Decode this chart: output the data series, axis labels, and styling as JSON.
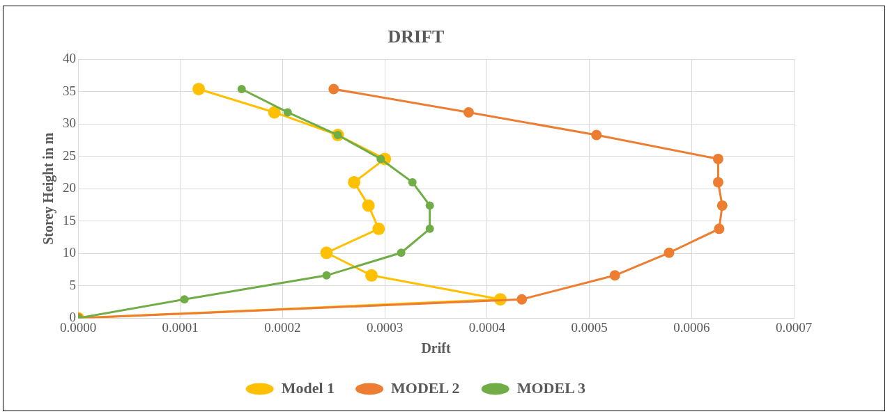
{
  "chart_data": {
    "type": "line",
    "title": "DRIFT",
    "xlabel": "Drift",
    "ylabel": "Storey Height in m",
    "xlim": [
      0,
      0.0007
    ],
    "xticks": [
      {
        "value": 0,
        "label": "0.0000"
      },
      {
        "value": 0.0001,
        "label": "0.0001"
      },
      {
        "value": 0.0002,
        "label": "0.0002"
      },
      {
        "value": 0.0003,
        "label": "0.0003"
      },
      {
        "value": 0.0004,
        "label": "0.0004"
      },
      {
        "value": 0.0005,
        "label": "0.0005"
      },
      {
        "value": 0.0006,
        "label": "0.0006"
      },
      {
        "value": 0.0007,
        "label": "0.0007"
      }
    ],
    "ylim": [
      0,
      40
    ],
    "yticks": [
      0,
      5,
      10,
      15,
      20,
      25,
      30,
      35,
      40
    ],
    "grid": true,
    "legend": "bottom",
    "marker": "circle",
    "line_style": "solid",
    "series": [
      {
        "name": "Model 1",
        "color": "#ffc000",
        "x": [
          0.000118,
          0.000192,
          0.000254,
          0.0003,
          0.00027,
          0.000284,
          0.000294,
          0.000243,
          0.000287,
          0.000413,
          0
        ],
        "values": [
          35.4,
          31.8,
          28.3,
          24.6,
          21,
          17.4,
          13.8,
          10.1,
          6.6,
          2.9,
          0
        ]
      },
      {
        "name": "MODEL 2",
        "color": "#ed7d31",
        "x": [
          0.00025,
          0.000382,
          0.000507,
          0.000626,
          0.000626,
          0.00063,
          0.000627,
          0.000578,
          0.000525,
          0.000434,
          0
        ],
        "values": [
          35.4,
          31.8,
          28.3,
          24.6,
          21,
          17.4,
          13.8,
          10.1,
          6.6,
          2.9,
          0
        ]
      },
      {
        "name": "MODEL 3",
        "color": "#70ad47",
        "x": [
          0.00016,
          0.000205,
          0.000254,
          0.000296,
          0.000327,
          0.000344,
          0.000344,
          0.000316,
          0.000243,
          0.000104,
          0
        ],
        "values": [
          35.4,
          31.8,
          28.3,
          24.6,
          21,
          17.4,
          13.8,
          10.1,
          6.6,
          2.9,
          0
        ]
      }
    ]
  }
}
